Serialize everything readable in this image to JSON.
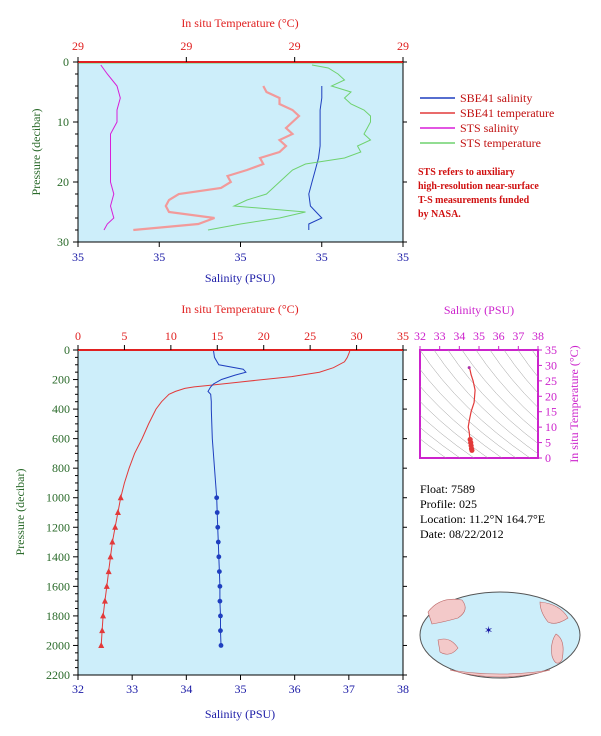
{
  "colors": {
    "sbe41_salinity": "#1f3fbf",
    "sbe41_temperature": "#e23a3a",
    "sts_salinity": "#d81ed8",
    "sts_temperature": "#6fd26f",
    "sbe41_temperature_light": "#f29a9a",
    "axis_temp": "#e02020",
    "axis_sal": "#1a1aa6",
    "axis_pressure": "#2a6a2a",
    "inset_axis": "#cc22cc",
    "plot_bg": "#cdeefa"
  },
  "top_chart": {
    "top_axis_title": "In situ Temperature (°C)",
    "bottom_axis_title": "Salinity (PSU)",
    "y_axis_title": "Pressure (decibar)",
    "top_ticks": [
      "29",
      "29",
      "29",
      "29"
    ],
    "bottom_ticks": [
      "35",
      "35",
      "35",
      "35",
      "35"
    ],
    "y_ticks": [
      "0",
      "10",
      "20",
      "30"
    ]
  },
  "legend": {
    "items": [
      "SBE41 salinity",
      "SBE41 temperature",
      "STS salinity",
      "STS temperature"
    ],
    "note_lines": [
      "STS refers to auxiliary",
      "high-resolution near-surface",
      "T-S measurements funded",
      "by NASA."
    ]
  },
  "main_chart": {
    "top_axis_title": "In situ Temperature (°C)",
    "bottom_axis_title": "Salinity (PSU)",
    "y_axis_title": "Pressure (decibar)",
    "top_ticks": [
      "0",
      "5",
      "10",
      "15",
      "20",
      "25",
      "30",
      "35"
    ],
    "bottom_ticks": [
      "32",
      "33",
      "34",
      "35",
      "36",
      "37",
      "38"
    ],
    "y_ticks": [
      "0",
      "200",
      "400",
      "600",
      "800",
      "1000",
      "1200",
      "1400",
      "1600",
      "1800",
      "2000",
      "2200"
    ]
  },
  "inset": {
    "top_axis_title": "Salinity (PSU)",
    "right_axis_title": "In situ Temperature (°C)",
    "top_ticks": [
      "32",
      "33",
      "34",
      "35",
      "36",
      "37",
      "38"
    ],
    "right_ticks": [
      "35",
      "30",
      "25",
      "20",
      "15",
      "10",
      "5",
      "0"
    ]
  },
  "info": {
    "float": "Float: 7589",
    "profile": "Profile: 025",
    "location": "Location: 11.2°N 164.7°E",
    "date": "Date: 08/22/2012"
  },
  "chart_data": [
    {
      "type": "line",
      "panel": "top near-surface profile",
      "xlabel_top": "In situ Temperature (°C)",
      "xlabel_bottom": "Salinity (PSU)",
      "ylabel": "Pressure (decibar)",
      "ylim": [
        30,
        0
      ],
      "series": [
        {
          "name": "SBE41 salinity",
          "pressure": [
            4,
            6,
            8,
            10,
            12,
            14,
            16,
            18,
            20,
            22,
            24,
            26,
            27,
            28
          ],
          "x_frac": [
            0.75,
            0.75,
            0.745,
            0.745,
            0.745,
            0.745,
            0.74,
            0.73,
            0.72,
            0.71,
            0.715,
            0.75,
            0.71,
            0.71
          ]
        },
        {
          "name": "SBE41 temperature",
          "pressure": [
            4,
            5,
            6,
            7,
            8,
            9,
            10,
            11,
            12,
            13,
            14,
            15,
            16,
            17,
            18,
            19,
            20,
            21,
            22,
            23,
            24,
            25,
            26,
            27,
            28
          ],
          "x_frac": [
            0.57,
            0.58,
            0.62,
            0.62,
            0.66,
            0.68,
            0.66,
            0.64,
            0.66,
            0.62,
            0.64,
            0.62,
            0.56,
            0.57,
            0.52,
            0.46,
            0.47,
            0.44,
            0.31,
            0.28,
            0.27,
            0.28,
            0.42,
            0.37,
            0.17
          ]
        },
        {
          "name": "STS salinity",
          "pressure": [
            0.5,
            2,
            4,
            6,
            8,
            10,
            12,
            14,
            16,
            18,
            20,
            22,
            24,
            26,
            27,
            28
          ],
          "x_frac": [
            0.07,
            0.09,
            0.12,
            0.13,
            0.12,
            0.12,
            0.1,
            0.1,
            0.1,
            0.1,
            0.1,
            0.11,
            0.1,
            0.11,
            0.09,
            0.08
          ]
        },
        {
          "name": "STS temperature",
          "pressure": [
            0.5,
            1,
            2,
            3,
            4,
            5,
            6,
            7,
            8,
            9,
            10,
            11,
            12,
            13,
            14,
            15,
            16,
            17,
            18,
            19,
            20,
            21,
            22,
            23,
            24,
            25,
            26,
            27,
            28
          ],
          "x_frac": [
            0.72,
            0.77,
            0.8,
            0.82,
            0.78,
            0.84,
            0.82,
            0.84,
            0.88,
            0.9,
            0.9,
            0.89,
            0.88,
            0.9,
            0.86,
            0.87,
            0.82,
            0.7,
            0.66,
            0.64,
            0.62,
            0.6,
            0.58,
            0.52,
            0.48,
            0.7,
            0.62,
            0.5,
            0.4
          ]
        }
      ]
    },
    {
      "type": "line",
      "panel": "main full-depth profile",
      "xlabel_top": "In situ Temperature (°C)",
      "xlabel_bottom": "Salinity (PSU)",
      "ylabel": "Pressure (decibar)",
      "ylim": [
        2200,
        0
      ],
      "temperature_range": [
        0,
        35
      ],
      "salinity_range": [
        32,
        38
      ],
      "series": [
        {
          "name": "SBE41 temperature",
          "pressure": [
            0,
            20,
            50,
            80,
            120,
            150,
            180,
            200,
            220,
            240,
            250,
            260,
            280,
            300,
            350,
            400,
            450,
            500,
            600,
            700,
            800,
            900,
            1000,
            1100,
            1200,
            1300,
            1400,
            1500,
            1600,
            1700,
            1800,
            1900,
            2000
          ],
          "values": [
            29.3,
            29.2,
            29.0,
            28.7,
            27.5,
            26.0,
            23.0,
            20.0,
            17.0,
            14.0,
            12.5,
            11.5,
            10.5,
            9.8,
            9.0,
            8.4,
            8.0,
            7.6,
            6.9,
            6.1,
            5.5,
            5.0,
            4.6,
            4.3,
            4.0,
            3.7,
            3.5,
            3.3,
            3.1,
            2.9,
            2.7,
            2.6,
            2.5
          ]
        },
        {
          "name": "SBE41 salinity",
          "pressure": [
            0,
            50,
            100,
            130,
            150,
            170,
            200,
            230,
            250,
            280,
            300,
            350,
            400,
            500,
            600,
            700,
            800,
            900,
            1000,
            1100,
            1200,
            1300,
            1400,
            1500,
            1600,
            1700,
            1800,
            1900,
            2000
          ],
          "values": [
            34.5,
            34.52,
            34.6,
            35.05,
            35.1,
            34.9,
            34.65,
            34.5,
            34.45,
            34.4,
            34.45,
            34.46,
            34.46,
            34.47,
            34.48,
            34.5,
            34.52,
            34.54,
            34.56,
            34.57,
            34.58,
            34.59,
            34.6,
            34.61,
            34.62,
            34.62,
            34.63,
            34.63,
            34.64
          ]
        }
      ]
    },
    {
      "type": "scatter",
      "panel": "T-S inset",
      "xlabel": "Salinity (PSU)",
      "ylabel": "In situ Temperature (°C)",
      "xlim": [
        32,
        38
      ],
      "ylim": [
        0,
        35
      ],
      "series": [
        {
          "name": "profile",
          "x": [
            34.5,
            34.55,
            34.6,
            34.7,
            34.8,
            34.75,
            34.6,
            34.5,
            34.45,
            34.5,
            34.52,
            34.55,
            34.58,
            34.6,
            34.62,
            34.64
          ],
          "y": [
            29.3,
            28.5,
            27.0,
            25.0,
            22.0,
            18.0,
            15.0,
            12.0,
            10.0,
            8.5,
            7.0,
            6.0,
            5.0,
            4.0,
            3.0,
            2.5
          ]
        }
      ]
    }
  ]
}
